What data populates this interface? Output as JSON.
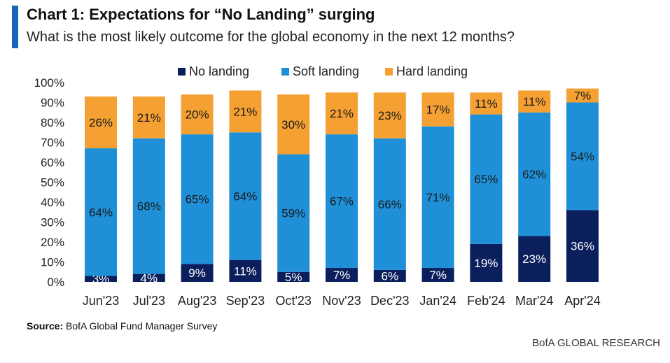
{
  "title": "Chart 1: Expectations for “No Landing” surging",
  "subtitle": "What is the most likely outcome for the global economy in the next 12 months?",
  "source_label": "Source:",
  "source_text": "BofA Global Fund Manager Survey",
  "brand": "BofA GLOBAL RESEARCH",
  "colors": {
    "no_landing": "#0a1f5c",
    "soft_landing": "#1f90d8",
    "hard_landing": "#f5a033",
    "accent": "#1565c0"
  },
  "chart_data": {
    "type": "bar",
    "stacked": true,
    "categories": [
      "Jun'23",
      "Jul'23",
      "Aug'23",
      "Sep'23",
      "Oct'23",
      "Nov'23",
      "Dec'23",
      "Jan'24",
      "Feb'24",
      "Mar'24",
      "Apr'24"
    ],
    "series": [
      {
        "name": "No landing",
        "values": [
          3,
          4,
          9,
          11,
          5,
          7,
          6,
          7,
          19,
          23,
          36
        ]
      },
      {
        "name": "Soft landing",
        "values": [
          64,
          68,
          65,
          64,
          59,
          67,
          66,
          71,
          65,
          62,
          54
        ]
      },
      {
        "name": "Hard landing",
        "values": [
          26,
          21,
          20,
          21,
          30,
          21,
          23,
          17,
          11,
          11,
          7
        ]
      }
    ],
    "ylim": [
      0,
      100
    ],
    "yticks": [
      "0%",
      "10%",
      "20%",
      "30%",
      "40%",
      "50%",
      "60%",
      "70%",
      "80%",
      "90%",
      "100%"
    ],
    "legend_position": "top",
    "grid": false
  }
}
